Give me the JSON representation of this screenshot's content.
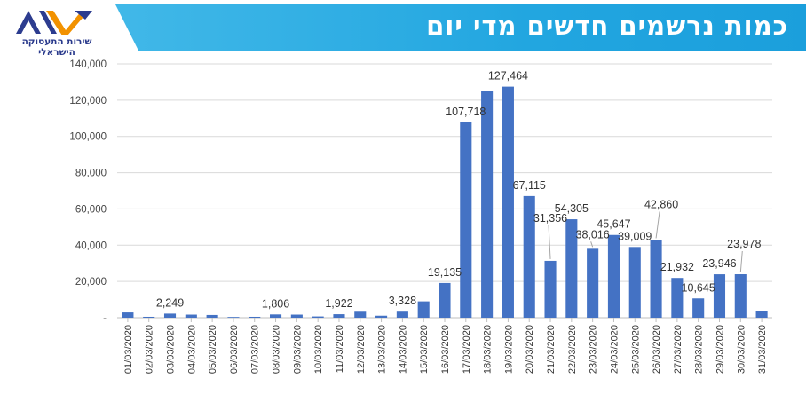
{
  "header": {
    "title": "כמות נרשמים חדשים מדי יום",
    "logo_text": "שירות התעסוקה הישראלי"
  },
  "colors": {
    "bar": "#4472c4",
    "header_band": "#29abe2",
    "logo_blue": "#2c3c8f",
    "logo_orange": "#f29200"
  },
  "chart_data": {
    "type": "bar",
    "title": "כמות נרשמים חדשים מדי יום",
    "xlabel": "",
    "ylabel": "",
    "ylim": [
      0,
      140000
    ],
    "yticks": [
      "-",
      "20,000",
      "40,000",
      "60,000",
      "80,000",
      "100,000",
      "120,000",
      "140,000"
    ],
    "grid": true,
    "categories": [
      "01/03/2020",
      "02/03/2020",
      "03/03/2020",
      "04/03/2020",
      "05/03/2020",
      "06/03/2020",
      "07/03/2020",
      "08/03/2020",
      "09/03/2020",
      "10/03/2020",
      "11/03/2020",
      "12/03/2020",
      "13/03/2020",
      "14/03/2020",
      "15/03/2020",
      "16/03/2020",
      "17/03/2020",
      "18/03/2020",
      "19/03/2020",
      "20/03/2020",
      "21/03/2020",
      "22/03/2020",
      "23/03/2020",
      "24/03/2020",
      "25/03/2020",
      "26/03/2020",
      "27/03/2020",
      "28/03/2020",
      "29/03/2020",
      "30/03/2020",
      "31/03/2020"
    ],
    "values": [
      2900,
      500,
      2249,
      1700,
      1500,
      400,
      500,
      1806,
      1700,
      700,
      1922,
      3300,
      1100,
      3328,
      9000,
      19135,
      107718,
      125000,
      127464,
      67115,
      31356,
      54305,
      38016,
      45647,
      39009,
      42860,
      21932,
      10645,
      23946,
      23978,
      3500
    ],
    "data_labels": [
      "",
      "",
      "2,249",
      "",
      "",
      "",
      "",
      "1,806",
      "",
      "",
      "1,922",
      "",
      "",
      "3,328",
      "",
      "19,135",
      "107,718",
      "",
      "127,464",
      "67,115",
      "31,356",
      "54,305",
      "38,016",
      "45,647",
      "39,009",
      "42,860",
      "21,932",
      "10,645",
      "23,946",
      "23,978",
      ""
    ]
  }
}
